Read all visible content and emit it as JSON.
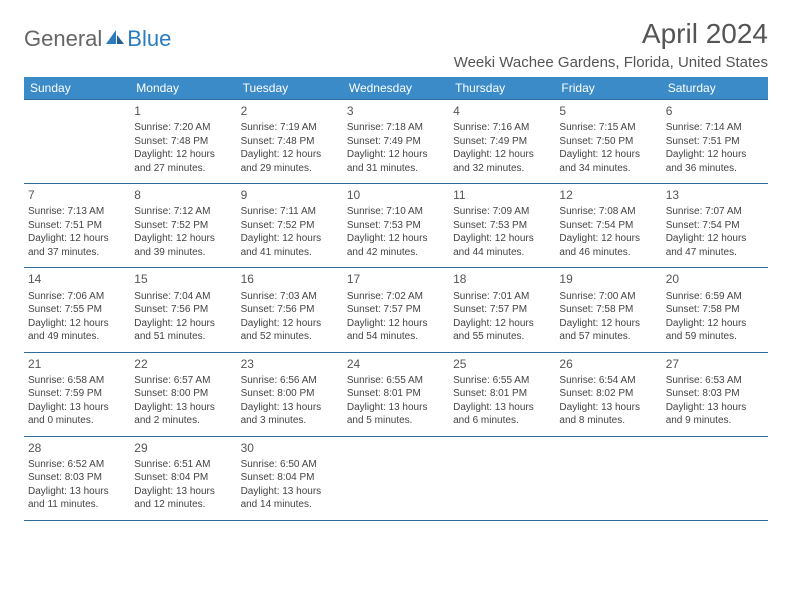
{
  "brand": {
    "part1": "General",
    "part2": "Blue"
  },
  "title": "April 2024",
  "location": "Weeki Wachee Gardens, Florida, United States",
  "colors": {
    "header_bg": "#3b8bc9",
    "header_text": "#ffffff",
    "rule": "#2c6aa0",
    "body_text": "#444444",
    "title_text": "#555555",
    "brand_gray": "#666666",
    "brand_blue": "#2b7bbf",
    "page_bg": "#ffffff"
  },
  "day_headers": [
    "Sunday",
    "Monday",
    "Tuesday",
    "Wednesday",
    "Thursday",
    "Friday",
    "Saturday"
  ],
  "weeks": [
    [
      {},
      {
        "num": "1",
        "sunrise": "Sunrise: 7:20 AM",
        "sunset": "Sunset: 7:48 PM",
        "daylight": "Daylight: 12 hours and 27 minutes."
      },
      {
        "num": "2",
        "sunrise": "Sunrise: 7:19 AM",
        "sunset": "Sunset: 7:48 PM",
        "daylight": "Daylight: 12 hours and 29 minutes."
      },
      {
        "num": "3",
        "sunrise": "Sunrise: 7:18 AM",
        "sunset": "Sunset: 7:49 PM",
        "daylight": "Daylight: 12 hours and 31 minutes."
      },
      {
        "num": "4",
        "sunrise": "Sunrise: 7:16 AM",
        "sunset": "Sunset: 7:49 PM",
        "daylight": "Daylight: 12 hours and 32 minutes."
      },
      {
        "num": "5",
        "sunrise": "Sunrise: 7:15 AM",
        "sunset": "Sunset: 7:50 PM",
        "daylight": "Daylight: 12 hours and 34 minutes."
      },
      {
        "num": "6",
        "sunrise": "Sunrise: 7:14 AM",
        "sunset": "Sunset: 7:51 PM",
        "daylight": "Daylight: 12 hours and 36 minutes."
      }
    ],
    [
      {
        "num": "7",
        "sunrise": "Sunrise: 7:13 AM",
        "sunset": "Sunset: 7:51 PM",
        "daylight": "Daylight: 12 hours and 37 minutes."
      },
      {
        "num": "8",
        "sunrise": "Sunrise: 7:12 AM",
        "sunset": "Sunset: 7:52 PM",
        "daylight": "Daylight: 12 hours and 39 minutes."
      },
      {
        "num": "9",
        "sunrise": "Sunrise: 7:11 AM",
        "sunset": "Sunset: 7:52 PM",
        "daylight": "Daylight: 12 hours and 41 minutes."
      },
      {
        "num": "10",
        "sunrise": "Sunrise: 7:10 AM",
        "sunset": "Sunset: 7:53 PM",
        "daylight": "Daylight: 12 hours and 42 minutes."
      },
      {
        "num": "11",
        "sunrise": "Sunrise: 7:09 AM",
        "sunset": "Sunset: 7:53 PM",
        "daylight": "Daylight: 12 hours and 44 minutes."
      },
      {
        "num": "12",
        "sunrise": "Sunrise: 7:08 AM",
        "sunset": "Sunset: 7:54 PM",
        "daylight": "Daylight: 12 hours and 46 minutes."
      },
      {
        "num": "13",
        "sunrise": "Sunrise: 7:07 AM",
        "sunset": "Sunset: 7:54 PM",
        "daylight": "Daylight: 12 hours and 47 minutes."
      }
    ],
    [
      {
        "num": "14",
        "sunrise": "Sunrise: 7:06 AM",
        "sunset": "Sunset: 7:55 PM",
        "daylight": "Daylight: 12 hours and 49 minutes."
      },
      {
        "num": "15",
        "sunrise": "Sunrise: 7:04 AM",
        "sunset": "Sunset: 7:56 PM",
        "daylight": "Daylight: 12 hours and 51 minutes."
      },
      {
        "num": "16",
        "sunrise": "Sunrise: 7:03 AM",
        "sunset": "Sunset: 7:56 PM",
        "daylight": "Daylight: 12 hours and 52 minutes."
      },
      {
        "num": "17",
        "sunrise": "Sunrise: 7:02 AM",
        "sunset": "Sunset: 7:57 PM",
        "daylight": "Daylight: 12 hours and 54 minutes."
      },
      {
        "num": "18",
        "sunrise": "Sunrise: 7:01 AM",
        "sunset": "Sunset: 7:57 PM",
        "daylight": "Daylight: 12 hours and 55 minutes."
      },
      {
        "num": "19",
        "sunrise": "Sunrise: 7:00 AM",
        "sunset": "Sunset: 7:58 PM",
        "daylight": "Daylight: 12 hours and 57 minutes."
      },
      {
        "num": "20",
        "sunrise": "Sunrise: 6:59 AM",
        "sunset": "Sunset: 7:58 PM",
        "daylight": "Daylight: 12 hours and 59 minutes."
      }
    ],
    [
      {
        "num": "21",
        "sunrise": "Sunrise: 6:58 AM",
        "sunset": "Sunset: 7:59 PM",
        "daylight": "Daylight: 13 hours and 0 minutes."
      },
      {
        "num": "22",
        "sunrise": "Sunrise: 6:57 AM",
        "sunset": "Sunset: 8:00 PM",
        "daylight": "Daylight: 13 hours and 2 minutes."
      },
      {
        "num": "23",
        "sunrise": "Sunrise: 6:56 AM",
        "sunset": "Sunset: 8:00 PM",
        "daylight": "Daylight: 13 hours and 3 minutes."
      },
      {
        "num": "24",
        "sunrise": "Sunrise: 6:55 AM",
        "sunset": "Sunset: 8:01 PM",
        "daylight": "Daylight: 13 hours and 5 minutes."
      },
      {
        "num": "25",
        "sunrise": "Sunrise: 6:55 AM",
        "sunset": "Sunset: 8:01 PM",
        "daylight": "Daylight: 13 hours and 6 minutes."
      },
      {
        "num": "26",
        "sunrise": "Sunrise: 6:54 AM",
        "sunset": "Sunset: 8:02 PM",
        "daylight": "Daylight: 13 hours and 8 minutes."
      },
      {
        "num": "27",
        "sunrise": "Sunrise: 6:53 AM",
        "sunset": "Sunset: 8:03 PM",
        "daylight": "Daylight: 13 hours and 9 minutes."
      }
    ],
    [
      {
        "num": "28",
        "sunrise": "Sunrise: 6:52 AM",
        "sunset": "Sunset: 8:03 PM",
        "daylight": "Daylight: 13 hours and 11 minutes."
      },
      {
        "num": "29",
        "sunrise": "Sunrise: 6:51 AM",
        "sunset": "Sunset: 8:04 PM",
        "daylight": "Daylight: 13 hours and 12 minutes."
      },
      {
        "num": "30",
        "sunrise": "Sunrise: 6:50 AM",
        "sunset": "Sunset: 8:04 PM",
        "daylight": "Daylight: 13 hours and 14 minutes."
      },
      {},
      {},
      {},
      {}
    ]
  ]
}
